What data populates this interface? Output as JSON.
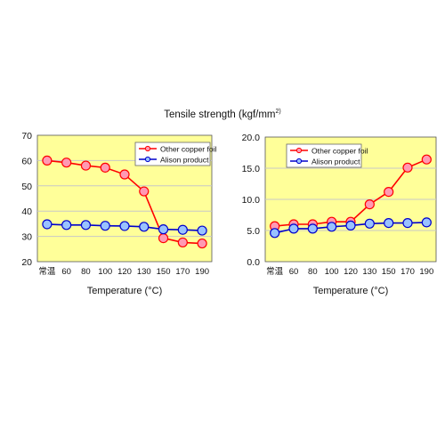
{
  "figure": {
    "title_main": "Tensile strength (kgf/mm",
    "title_sup": "2)"
  },
  "colors": {
    "plot_background": "#ffff99",
    "other_line": "#ff0000",
    "other_marker_fill": "#ff99b3",
    "alison_line": "#0000cc",
    "alison_marker_fill": "#99c2ff",
    "gridline": "#c8c8c8"
  },
  "chart_data": [
    {
      "type": "line",
      "title": "",
      "xlabel": "Temperature (°C)",
      "ylabel": "",
      "categories": [
        "常温",
        "60",
        "80",
        "100",
        "120",
        "130",
        "150",
        "170",
        "190"
      ],
      "ylim": [
        20,
        70
      ],
      "yticks": [
        "20",
        "30",
        "40",
        "50",
        "60",
        "70"
      ],
      "grid": true,
      "legend_position": "top-right",
      "series": [
        {
          "name": "Other copper foil",
          "values": [
            60,
            59.2,
            58,
            57.2,
            54.5,
            47.8,
            29.3,
            27.6,
            27.2
          ]
        },
        {
          "name": "Alison product",
          "values": [
            34.8,
            34.5,
            34.5,
            34.2,
            34.1,
            33.8,
            32.8,
            32.6,
            32.3
          ]
        }
      ]
    },
    {
      "type": "line",
      "title": "",
      "xlabel": "Temperature (°C)",
      "ylabel": "",
      "categories": [
        "常温",
        "60",
        "80",
        "100",
        "120",
        "130",
        "150",
        "170",
        "190"
      ],
      "ylim": [
        0,
        20
      ],
      "yticks": [
        "0.0",
        "5.0",
        "10.0",
        "15.0",
        "20.0"
      ],
      "grid": true,
      "legend_position": "top-left",
      "series": [
        {
          "name": "Other copper foil",
          "values": [
            5.7,
            6.0,
            6.0,
            6.4,
            6.4,
            9.2,
            11.2,
            15.1,
            16.4
          ]
        },
        {
          "name": "Alison product",
          "values": [
            4.6,
            5.3,
            5.3,
            5.6,
            5.8,
            6.1,
            6.2,
            6.2,
            6.3
          ]
        }
      ]
    }
  ]
}
